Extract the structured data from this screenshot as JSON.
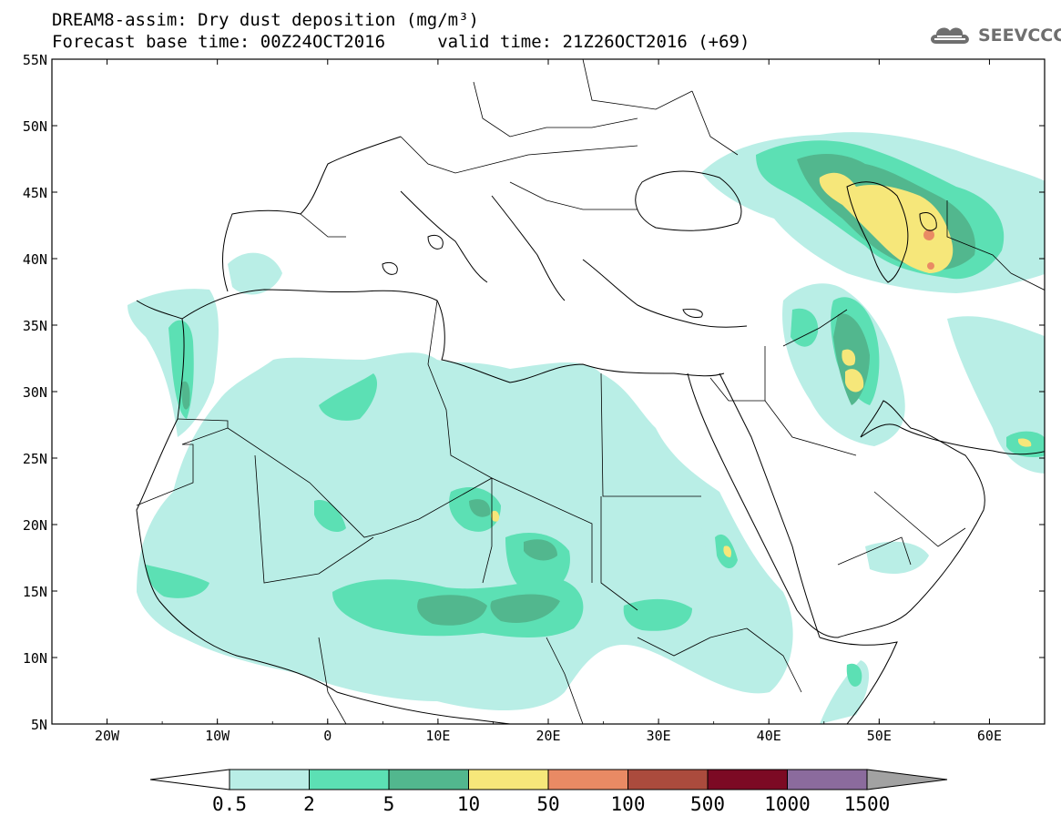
{
  "header": {
    "title_line1": "DREAM8-assim: Dry dust deposition (mg/m³)",
    "title_line2": "Forecast base time: 00Z24OCT2016     valid time: 21Z26OCT2016 (+69)",
    "logo_text": "SEEVCCC",
    "logo_icon": "cloud-icon"
  },
  "map": {
    "lon_range": [
      -25,
      65
    ],
    "lat_range": [
      5,
      55
    ],
    "lat_labels": [
      "55N",
      "50N",
      "45N",
      "40N",
      "35N",
      "30N",
      "25N",
      "20N",
      "15N",
      "10N",
      "5N"
    ],
    "lon_labels": [
      "20W",
      "10W",
      "0",
      "10E",
      "20E",
      "30E",
      "40E",
      "50E",
      "60E"
    ],
    "background": "#ffffff"
  },
  "legend": {
    "labels": [
      "0.5",
      "2",
      "5",
      "10",
      "50",
      "100",
      "500",
      "1000",
      "1500"
    ],
    "colors": [
      "#ffffff",
      "#b9eee6",
      "#5ce0b4",
      "#52b78e",
      "#f6e77a",
      "#e98a64",
      "#ab4b3d",
      "#7c0a24",
      "#8b6b9d",
      "#a2a2a2"
    ]
  }
}
